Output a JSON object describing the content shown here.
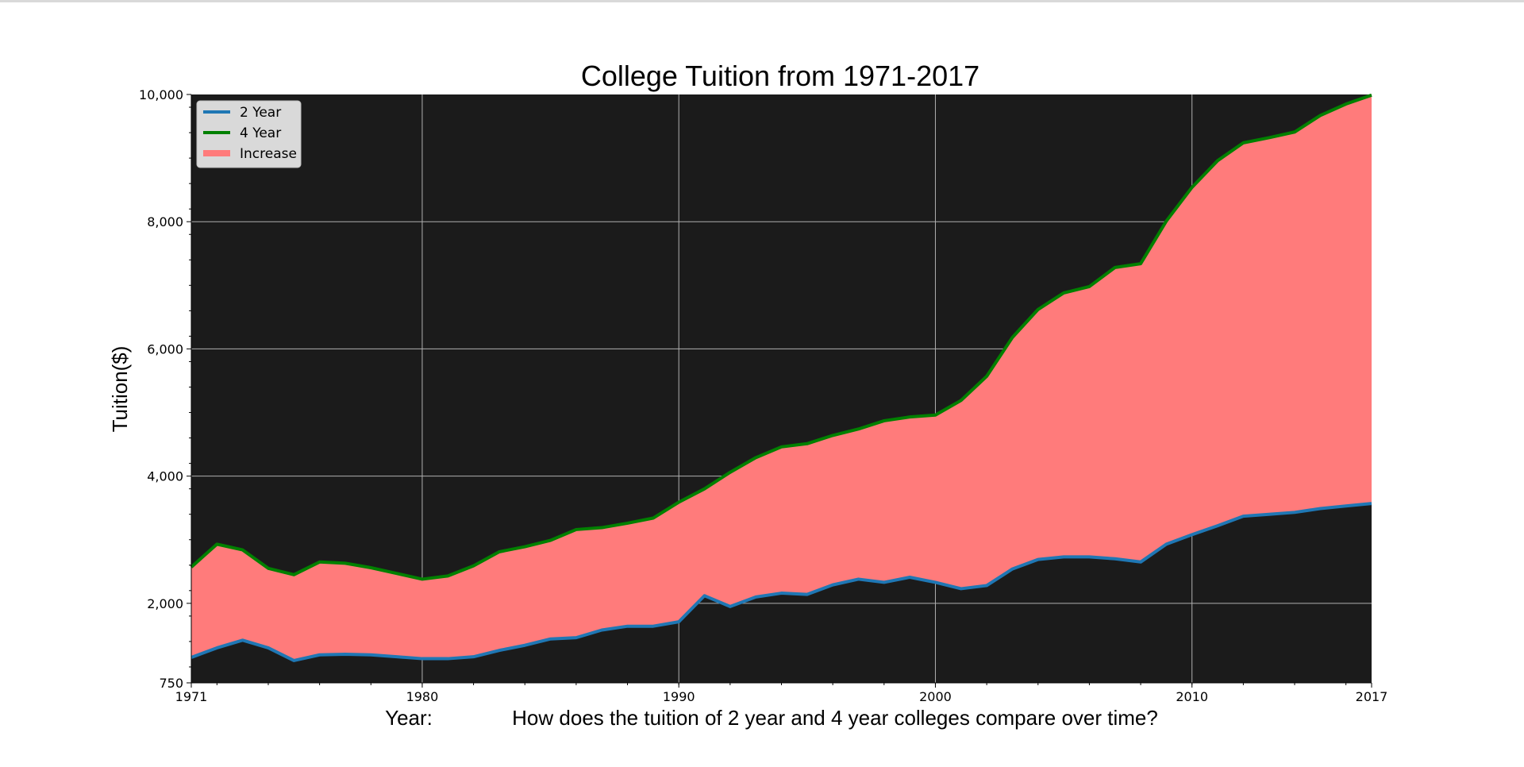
{
  "chart_data": {
    "type": "area",
    "title": "College Tuition from 1971-2017",
    "xlabel": "Year:",
    "xlabel_note": "How does the tuition of 2 year and 4 year colleges compare over time?",
    "ylabel": "Tuition($)",
    "xlim": [
      1971,
      2017
    ],
    "ylim": [
      750,
      10000
    ],
    "x_ticks": [
      1971,
      1980,
      1990,
      2000,
      2010,
      2017
    ],
    "y_ticks": [
      750,
      2000,
      4000,
      6000,
      8000,
      10000
    ],
    "y_tick_labels": [
      "750",
      "2,000",
      "4,000",
      "6,000",
      "8,000",
      "10,000"
    ],
    "grid": true,
    "background": "#1b1b1b",
    "legend_position": "upper-left",
    "x": [
      1971,
      1972,
      1973,
      1974,
      1975,
      1976,
      1977,
      1978,
      1979,
      1980,
      1981,
      1982,
      1983,
      1984,
      1985,
      1986,
      1987,
      1988,
      1989,
      1990,
      1991,
      1992,
      1993,
      1994,
      1995,
      1996,
      1997,
      1998,
      1999,
      2000,
      2001,
      2002,
      2003,
      2004,
      2005,
      2006,
      2007,
      2008,
      2009,
      2010,
      2011,
      2012,
      2013,
      2014,
      2015,
      2016,
      2017
    ],
    "series": [
      {
        "name": "2 Year",
        "color": "#1f77b4",
        "values": [
          1150,
          1300,
          1420,
          1300,
          1100,
          1190,
          1200,
          1190,
          1160,
          1130,
          1130,
          1160,
          1260,
          1340,
          1440,
          1460,
          1580,
          1640,
          1640,
          1710,
          2120,
          1950,
          2100,
          2160,
          2140,
          2290,
          2380,
          2330,
          2410,
          2330,
          2230,
          2280,
          2540,
          2690,
          2730,
          2730,
          2700,
          2650,
          2930,
          3080,
          3220,
          3370,
          3400,
          3430,
          3490,
          3530,
          3570
        ]
      },
      {
        "name": "4 Year",
        "color": "#008000",
        "values": [
          2570,
          2930,
          2840,
          2550,
          2450,
          2650,
          2630,
          2560,
          2470,
          2380,
          2430,
          2590,
          2810,
          2890,
          2990,
          3160,
          3190,
          3260,
          3340,
          3590,
          3800,
          4060,
          4290,
          4460,
          4510,
          4640,
          4740,
          4870,
          4930,
          4960,
          5190,
          5570,
          6180,
          6620,
          6880,
          6980,
          7280,
          7340,
          8010,
          8540,
          8960,
          9240,
          9320,
          9410,
          9670,
          9850,
          9990
        ]
      }
    ],
    "fill": {
      "name": "Increase",
      "color": "#ff7b7b"
    }
  }
}
